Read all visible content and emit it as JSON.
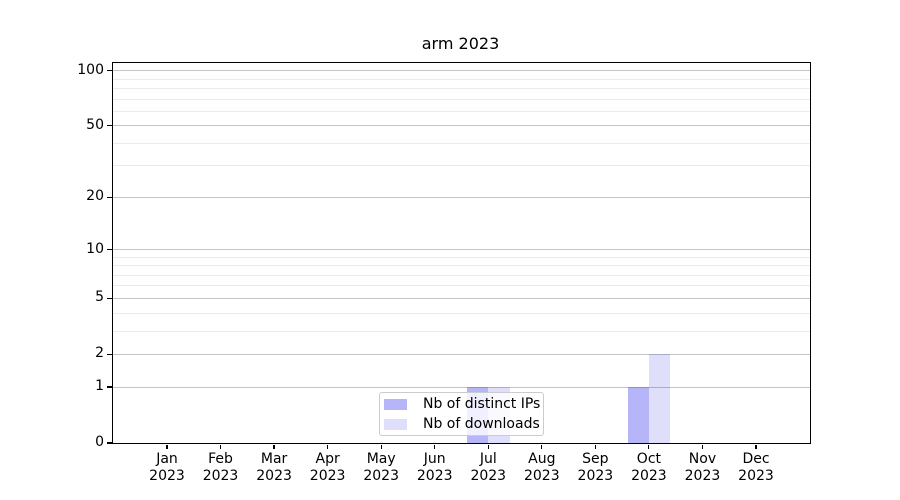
{
  "chart_data": {
    "type": "bar",
    "title": "arm 2023",
    "categories": [
      "Jan 2023",
      "Feb 2023",
      "Mar 2023",
      "Apr 2023",
      "May 2023",
      "Jun 2023",
      "Jul 2023",
      "Aug 2023",
      "Sep 2023",
      "Oct 2023",
      "Nov 2023",
      "Dec 2023"
    ],
    "series": [
      {
        "name": "Nb of distinct IPs",
        "color": "rgba(30,30,230,0.33)",
        "values": [
          0,
          0,
          0,
          0,
          0,
          0,
          1,
          0,
          0,
          1,
          0,
          0
        ]
      },
      {
        "name": "Nb of downloads",
        "color": "rgba(30,30,230,0.14)",
        "values": [
          0,
          0,
          0,
          0,
          0,
          0,
          1,
          0,
          0,
          2,
          0,
          0
        ]
      }
    ],
    "xlabel": "",
    "ylabel": "",
    "yscale": "log1p",
    "ylim": [
      0,
      110
    ],
    "yticks": [
      0,
      1,
      2,
      5,
      10,
      20,
      50,
      100
    ],
    "minor_yticks": [
      3,
      4,
      6,
      7,
      8,
      9,
      30,
      40,
      60,
      70,
      80,
      90
    ],
    "grid": {
      "major_color": "#c4c4c4",
      "minor_color": "#ebebeb",
      "on": true
    },
    "legend_position": "lower center",
    "spine_color": "#000000",
    "background_color": "#ffffff"
  },
  "legend": {
    "entries": [
      {
        "label": "Nb of distinct IPs",
        "color": "rgba(30,30,230,0.33)"
      },
      {
        "label": "Nb of downloads",
        "color": "rgba(30,30,230,0.14)"
      }
    ]
  }
}
